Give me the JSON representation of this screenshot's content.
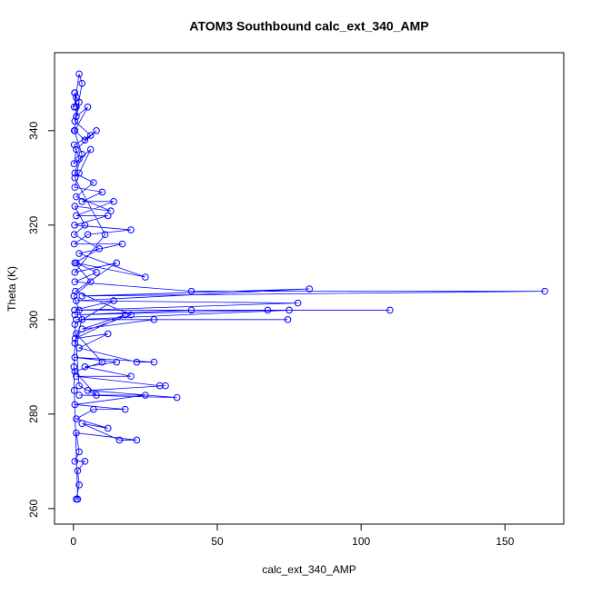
{
  "chart_data": {
    "type": "line",
    "title": "ATOM3 Southbound calc_ext_340_AMP",
    "x_label": "calc_ext_340_AMP",
    "y_label": "Theta (K)",
    "color": "#0000ff",
    "markers": true,
    "x": [
      0.5,
      1,
      0.3,
      2,
      3,
      1,
      5,
      0.5,
      4,
      8,
      1,
      0.2,
      6,
      2,
      0.5,
      10,
      3,
      14,
      1,
      12,
      0.4,
      20,
      5,
      0.3,
      17,
      2,
      25,
      1,
      8,
      0.5,
      41,
      163.8,
      3,
      82,
      1,
      78,
      2,
      110,
      41,
      0.5,
      67.5,
      75,
      1,
      74.5,
      28,
      3,
      18,
      0.6,
      12,
      2,
      22,
      28,
      0.5,
      15,
      4,
      20,
      1,
      30,
      32,
      5,
      36,
      2,
      25,
      0.5,
      18,
      7,
      1,
      12,
      3,
      16,
      22,
      1,
      2,
      0.5,
      4,
      1.5,
      2,
      1,
      1.5,
      0.3,
      0.2,
      0.5,
      3,
      0.2,
      6,
      0.5,
      9,
      0.3,
      4,
      0.5,
      13,
      1,
      7,
      0.5,
      2,
      0.3,
      6,
      0.5,
      1,
      0.4,
      2,
      0.3,
      3,
      0.5,
      11,
      0.5,
      15,
      0.7,
      20,
      1,
      10,
      0.5,
      8,
      2,
      0.5,
      14,
      0.4
    ],
    "values": [
      348,
      347,
      345,
      352,
      350,
      343,
      345,
      340,
      338,
      340,
      336,
      333,
      336,
      331,
      328,
      327,
      325,
      325,
      322,
      322,
      320,
      319,
      318,
      316,
      316,
      314,
      309,
      312,
      310,
      308,
      306,
      306,
      305,
      306.5,
      304,
      303.5,
      302,
      302,
      302,
      301,
      302,
      302,
      300,
      300,
      300,
      298,
      301,
      296,
      297,
      294,
      291,
      291,
      292,
      291,
      290,
      288,
      288,
      286,
      286,
      285,
      283.5,
      284,
      284,
      282,
      281,
      281,
      279,
      277,
      278,
      274.5,
      274.5,
      276,
      272,
      270,
      270,
      268,
      265,
      262,
      262,
      285,
      290,
      295,
      300,
      305,
      308,
      312,
      315,
      318,
      320,
      324,
      323,
      326,
      329,
      331,
      334,
      337,
      339,
      342,
      345,
      348,
      346,
      340,
      335,
      330,
      318,
      310,
      312,
      306,
      301,
      297,
      291,
      289,
      284,
      286,
      299,
      304,
      302
    ],
    "xlim": [
      -6.55,
      170.4
    ],
    "ylim": [
      256.7,
      356.5
    ],
    "xticks": [
      0,
      50,
      100,
      150
    ],
    "yticks": [
      260,
      280,
      300,
      320,
      340
    ]
  }
}
